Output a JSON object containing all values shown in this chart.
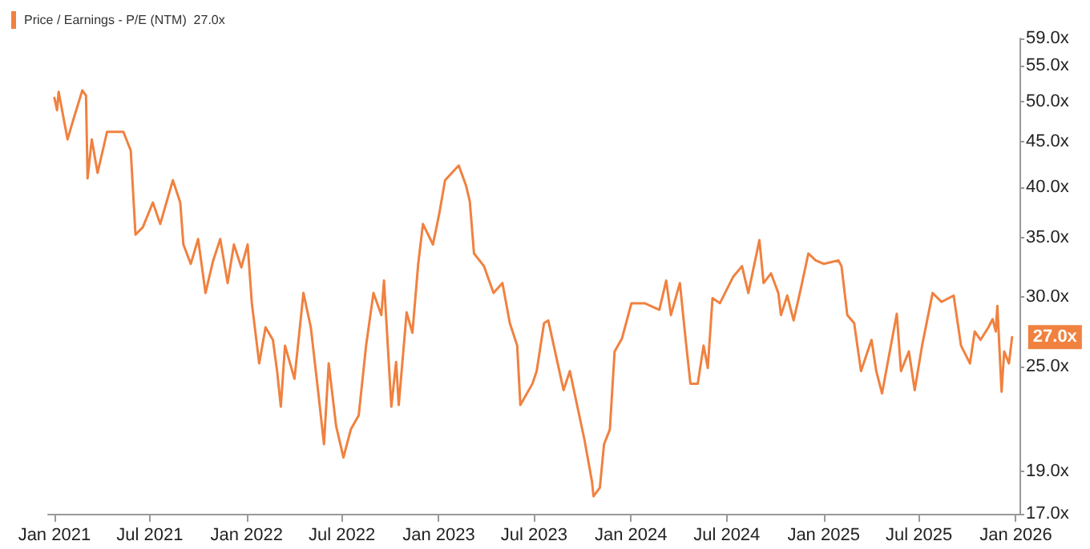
{
  "chart_data": {
    "type": "line",
    "log": "y",
    "grid": false,
    "legend": "top left",
    "marker": "none",
    "line_style": "solid",
    "xlim": [
      "2020-12-20",
      "2026-01-08"
    ],
    "xticks": [
      {
        "value": "2021-01-01",
        "label": "Jan 2021"
      },
      {
        "value": "2021-07-01",
        "label": "Jul 2021"
      },
      {
        "value": "2022-01-01",
        "label": "Jan 2022"
      },
      {
        "value": "2022-07-01",
        "label": "Jul 2022"
      },
      {
        "value": "2023-01-01",
        "label": "Jan 2023"
      },
      {
        "value": "2023-07-01",
        "label": "Jul 2023"
      },
      {
        "value": "2024-01-01",
        "label": "Jan 2024"
      },
      {
        "value": "2024-07-01",
        "label": "Jul 2024"
      },
      {
        "value": "2025-01-01",
        "label": "Jan 2025"
      },
      {
        "value": "2025-07-01",
        "label": "Jul 2025"
      },
      {
        "value": "2026-01-01",
        "label": "Jan 2026"
      }
    ],
    "ylim": [
      17,
      59
    ],
    "yticks": [
      {
        "value": 17,
        "label": "17.0x"
      },
      {
        "value": 19,
        "label": "19.0x"
      },
      {
        "value": 25,
        "label": "25.0x"
      },
      {
        "value": 30,
        "label": "30.0x"
      },
      {
        "value": 35,
        "label": "35.0x"
      },
      {
        "value": 40,
        "label": "40.0x"
      },
      {
        "value": 45,
        "label": "45.0x"
      },
      {
        "value": 50,
        "label": "50.0x"
      },
      {
        "value": 55,
        "label": "55.0x"
      },
      {
        "value": 59,
        "label": "59.0x"
      }
    ],
    "annotations": [
      {
        "text": "27.0x",
        "x": "2025-12-25",
        "y": 27
      }
    ],
    "x": [
      "2021-01-01",
      "2021-01-06",
      "2021-01-09",
      "2021-01-26",
      "2021-02-06",
      "2021-02-23",
      "2021-03-02",
      "2021-03-05",
      "2021-03-13",
      "2021-03-24",
      "2021-04-11",
      "2021-05-12",
      "2021-05-26",
      "2021-06-04",
      "2021-06-18",
      "2021-07-07",
      "2021-07-21",
      "2021-08-14",
      "2021-08-28",
      "2021-09-03",
      "2021-09-17",
      "2021-10-01",
      "2021-10-15",
      "2021-10-29",
      "2021-11-12",
      "2021-11-26",
      "2021-12-08",
      "2021-12-22",
      "2022-01-03",
      "2022-01-11",
      "2022-01-25",
      "2022-02-06",
      "2022-02-20",
      "2022-02-28",
      "2022-03-07",
      "2022-03-15",
      "2022-04-02",
      "2022-04-19",
      "2022-05-03",
      "2022-05-17",
      "2022-05-28",
      "2022-06-06",
      "2022-06-20",
      "2022-07-04",
      "2022-07-18",
      "2022-08-02",
      "2022-08-16",
      "2022-08-30",
      "2022-09-14",
      "2022-09-19",
      "2022-10-03",
      "2022-10-12",
      "2022-10-17",
      "2022-11-01",
      "2022-11-12",
      "2022-11-23",
      "2022-12-02",
      "2022-12-21",
      "2023-01-02",
      "2023-01-13",
      "2023-02-08",
      "2023-02-22",
      "2023-03-01",
      "2023-03-09",
      "2023-03-28",
      "2023-04-15",
      "2023-05-02",
      "2023-05-16",
      "2023-05-30",
      "2023-06-05",
      "2023-06-28",
      "2023-07-06",
      "2023-07-20",
      "2023-07-28",
      "2023-08-26",
      "2023-09-07",
      "2023-10-05",
      "2023-10-19",
      "2023-10-22",
      "2023-11-03",
      "2023-11-11",
      "2023-11-22",
      "2023-12-01",
      "2023-12-15",
      "2024-01-02",
      "2024-01-27",
      "2024-02-24",
      "2024-03-08",
      "2024-03-17",
      "2024-04-03",
      "2024-04-14",
      "2024-04-23",
      "2024-05-07",
      "2024-05-18",
      "2024-05-26",
      "2024-06-04",
      "2024-06-18",
      "2024-07-13",
      "2024-07-30",
      "2024-08-11",
      "2024-09-01",
      "2024-09-09",
      "2024-09-23",
      "2024-10-07",
      "2024-10-12",
      "2024-10-24",
      "2024-11-05",
      "2024-11-19",
      "2024-12-03",
      "2024-12-17",
      "2025-01-01",
      "2025-01-29",
      "2025-02-04",
      "2025-02-15",
      "2025-02-28",
      "2025-03-13",
      "2025-04-02",
      "2025-04-11",
      "2025-04-22",
      "2025-05-03",
      "2025-05-20",
      "2025-05-28",
      "2025-06-12",
      "2025-06-23",
      "2025-07-07",
      "2025-07-27",
      "2025-08-13",
      "2025-09-05",
      "2025-09-19",
      "2025-10-06",
      "2025-10-15",
      "2025-10-26",
      "2025-11-10",
      "2025-11-18",
      "2025-11-24",
      "2025-11-27",
      "2025-12-05",
      "2025-12-10",
      "2025-12-19",
      "2025-12-25"
    ],
    "series": [
      {
        "name": "Price / Earnings - P/E (NTM)  27.0x",
        "color": "#f0813f",
        "values": [
          50.5,
          48.9,
          51.3,
          45.3,
          47.7,
          51.5,
          50.8,
          40.9,
          45.3,
          41.5,
          46.2,
          46.2,
          44.0,
          35.3,
          36.0,
          38.4,
          36.3,
          40.7,
          38.4,
          34.4,
          32.7,
          34.9,
          30.3,
          32.9,
          34.9,
          31.1,
          34.4,
          32.4,
          34.4,
          29.5,
          25.2,
          27.7,
          26.8,
          24.7,
          22.5,
          26.4,
          24.2,
          30.3,
          27.7,
          23.4,
          20.4,
          25.2,
          21.4,
          19.7,
          21.2,
          22.0,
          26.4,
          30.3,
          28.6,
          31.3,
          22.5,
          25.3,
          22.6,
          28.8,
          27.3,
          32.7,
          36.3,
          34.4,
          37.3,
          40.7,
          42.3,
          40.1,
          38.5,
          33.6,
          32.5,
          30.3,
          31.1,
          28.0,
          26.4,
          22.6,
          23.9,
          24.7,
          28.0,
          28.2,
          23.5,
          24.7,
          20.6,
          18.5,
          17.8,
          18.2,
          20.4,
          21.2,
          26.0,
          26.9,
          29.5,
          29.5,
          29.0,
          31.3,
          28.6,
          31.1,
          26.8,
          23.9,
          23.9,
          26.4,
          24.9,
          29.9,
          29.5,
          31.6,
          32.5,
          30.3,
          34.8,
          31.1,
          31.9,
          30.3,
          28.6,
          30.1,
          28.2,
          30.7,
          33.6,
          33.0,
          32.7,
          33.0,
          32.5,
          28.6,
          28.0,
          24.7,
          26.8,
          24.7,
          23.3,
          25.3,
          28.7,
          24.7,
          26.0,
          23.5,
          26.4,
          30.3,
          29.6,
          30.1,
          26.4,
          25.2,
          27.4,
          26.8,
          27.7,
          28.3,
          27.4,
          29.3,
          23.4,
          26.0,
          25.2,
          27.0
        ]
      }
    ]
  }
}
